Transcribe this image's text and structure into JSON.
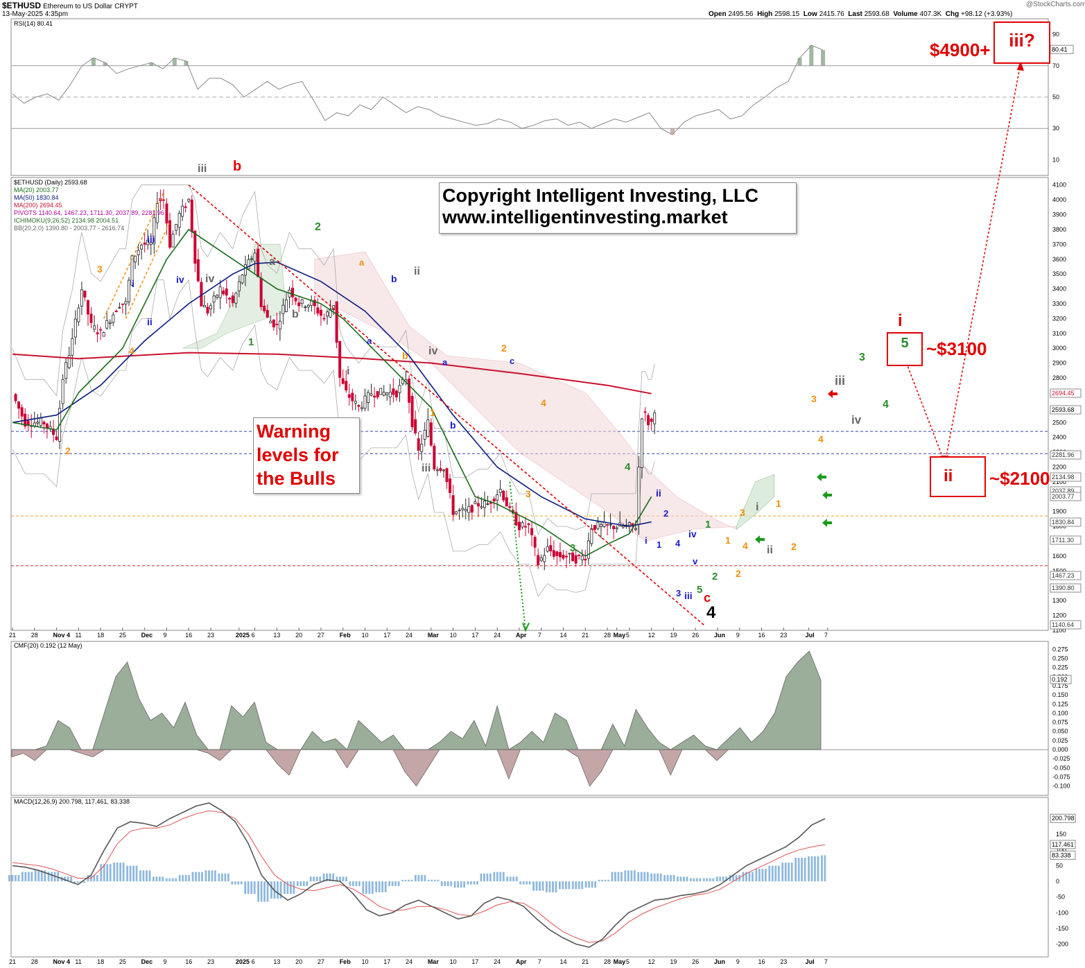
{
  "header": {
    "symbol": "$ETHUSD",
    "name": "Ethereum to US Dollar",
    "exchange": "CRYPT",
    "date": "13-May-2025 4:35pm",
    "watermark": "@StockCharts.com",
    "ohlc": {
      "open_label": "Open",
      "open": "2495.56",
      "high_label": "High",
      "high": "2598.15",
      "low_label": "Low",
      "low": "2415.76",
      "last_label": "Last",
      "last": "2593.68",
      "volume_label": "Volume",
      "volume": "407.3K",
      "chg_label": "Chg",
      "chg": "+98.12 (+3.93%)"
    }
  },
  "legend": {
    "price": "$ETHUSD (Daily) 2593.68",
    "ma20": "MA(20) 2003.77",
    "ma50": "MA(50) 1830.84",
    "ma200": "MA(200) 2694.45",
    "pivots": "PIVOTS 1140.64, 1467.23, 1711.30, 2037.89, 2281.96",
    "ichimoku": "ICHIMOKU(9,26,52) 2134.98 2004.51",
    "bb": "BB(20,2.0) 1390.80 - 2003.77 - 2616.74",
    "rsi": "RSI(14) 80.41",
    "cmf": "CMF(20) 0.192 (12 May)",
    "macd": "MACD(12,26,9) 200.798, 117.461, 83.338"
  },
  "annotations": {
    "copyright_line1": "Copyright Intelligent Investing, LLC",
    "copyright_line2": "www.intelligentinvesting.market",
    "warning_line1": "Warning",
    "warning_line2": "levels for",
    "warning_line3": "the Bulls",
    "target_4900": "$4900+",
    "box_iii": "iii?",
    "target_3100": "~$3100",
    "box_i_top": "i",
    "box_5": "5",
    "target_2100": "~$2100",
    "box_ii": "ii"
  },
  "colors": {
    "up": "#222222",
    "down": "#cc0033",
    "ma20": "#1a6b1a",
    "ma50": "#0a1a80",
    "ma200": "#c8102e",
    "red": "#e00000",
    "orange": "#f0900a",
    "green": "#2a8a2a",
    "blue": "#1a1acc",
    "gray": "#555555",
    "cmf_pos": "#9aae9a",
    "cmf_neg": "#c4a6a6",
    "macd_hist": "#8fb8dc"
  },
  "chart_data": [
    {
      "type": "candlestick",
      "title": "$ETHUSD (Daily) 2593.68",
      "y_ticks": [
        1100,
        1200,
        1300,
        1400,
        1500,
        1600,
        1700,
        1800,
        1900,
        2000,
        2100,
        2200,
        2300,
        2400,
        2500,
        2600,
        2700,
        2800,
        2900,
        3000,
        3100,
        3200,
        3300,
        3400,
        3500,
        3600,
        3700,
        3800,
        3900,
        4000,
        4100
      ],
      "ylim": [
        1100,
        4150
      ],
      "x_ticks": [
        "21",
        "28",
        "Nov 4",
        "11",
        "18",
        "25",
        "Dec",
        "9",
        "16",
        "23",
        "2025",
        "6",
        "13",
        "20",
        "27",
        "Feb",
        "10",
        "17",
        "24",
        "Mar",
        "10",
        "17",
        "24",
        "Apr",
        "7",
        "14",
        "21",
        "28",
        "May",
        "5",
        "12",
        "19",
        "26",
        "Jun",
        "9",
        "16",
        "23",
        "Jul",
        "7"
      ],
      "close_path": [
        [
          "2024-10-21",
          2690
        ],
        [
          "2024-10-25",
          2500
        ],
        [
          "2024-10-31",
          2500
        ],
        [
          "2024-11-04",
          2400
        ],
        [
          "2024-11-06",
          2800
        ],
        [
          "2024-11-09",
          3050
        ],
        [
          "2024-11-11",
          3300
        ],
        [
          "2024-11-12",
          3400
        ],
        [
          "2024-11-15",
          3150
        ],
        [
          "2024-11-18",
          3100
        ],
        [
          "2024-11-21",
          3200
        ],
        [
          "2024-11-24",
          3300
        ],
        [
          "2024-11-26",
          3300
        ],
        [
          "2024-11-28",
          3600
        ],
        [
          "2024-12-01",
          3700
        ],
        [
          "2024-12-04",
          3700
        ],
        [
          "2024-12-06",
          4000
        ],
        [
          "2024-12-08",
          4000
        ],
        [
          "2024-12-10",
          3700
        ],
        [
          "2024-12-13",
          3900
        ],
        [
          "2024-12-16",
          4000
        ],
        [
          "2024-12-18",
          3600
        ],
        [
          "2024-12-20",
          3300
        ],
        [
          "2024-12-22",
          3250
        ],
        [
          "2024-12-26",
          3400
        ],
        [
          "2024-12-30",
          3300
        ],
        [
          "2025-01-02",
          3500
        ],
        [
          "2025-01-06",
          3650
        ],
        [
          "2025-01-08",
          3300
        ],
        [
          "2025-01-10",
          3200
        ],
        [
          "2025-01-13",
          3150
        ],
        [
          "2025-01-17",
          3400
        ],
        [
          "2025-01-20",
          3300
        ],
        [
          "2025-01-24",
          3300
        ],
        [
          "2025-01-28",
          3200
        ],
        [
          "2025-01-31",
          3300
        ],
        [
          "2025-02-02",
          2800
        ],
        [
          "2025-02-04",
          2700
        ],
        [
          "2025-02-08",
          2600
        ],
        [
          "2025-02-12",
          2700
        ],
        [
          "2025-02-16",
          2700
        ],
        [
          "2025-02-20",
          2700
        ],
        [
          "2025-02-23",
          2800
        ],
        [
          "2025-02-25",
          2500
        ],
        [
          "2025-02-27",
          2300
        ],
        [
          "2025-03-02",
          2500
        ],
        [
          "2025-03-04",
          2200
        ],
        [
          "2025-03-07",
          2200
        ],
        [
          "2025-03-10",
          1900
        ],
        [
          "2025-03-14",
          1900
        ],
        [
          "2025-03-18",
          1950
        ],
        [
          "2025-03-21",
          1950
        ],
        [
          "2025-03-25",
          2050
        ],
        [
          "2025-03-28",
          1900
        ],
        [
          "2025-03-31",
          1800
        ],
        [
          "2025-04-03",
          1800
        ],
        [
          "2025-04-06",
          1550
        ],
        [
          "2025-04-09",
          1650
        ],
        [
          "2025-04-12",
          1600
        ],
        [
          "2025-04-15",
          1600
        ],
        [
          "2025-04-18",
          1580
        ],
        [
          "2025-04-21",
          1600
        ],
        [
          "2025-04-23",
          1800
        ],
        [
          "2025-04-26",
          1800
        ],
        [
          "2025-04-30",
          1800
        ],
        [
          "2025-05-03",
          1800
        ],
        [
          "2025-05-07",
          1800
        ],
        [
          "2025-05-08",
          2200
        ],
        [
          "2025-05-09",
          2550
        ],
        [
          "2025-05-10",
          2550
        ],
        [
          "2025-05-11",
          2500
        ],
        [
          "2025-05-12",
          2500
        ],
        [
          "2025-05-13",
          2594
        ]
      ],
      "ma20": [
        [
          "2024-10-21",
          2500
        ],
        [
          "2024-11-04",
          2450
        ],
        [
          "2024-11-11",
          2700
        ],
        [
          "2024-11-25",
          3000
        ],
        [
          "2024-12-09",
          3600
        ],
        [
          "2024-12-16",
          3800
        ],
        [
          "2024-12-30",
          3600
        ],
        [
          "2025-01-06",
          3500
        ],
        [
          "2025-01-13",
          3400
        ],
        [
          "2025-01-27",
          3300
        ],
        [
          "2025-02-03",
          3200
        ],
        [
          "2025-02-17",
          2900
        ],
        [
          "2025-02-24",
          2750
        ],
        [
          "2025-03-03",
          2600
        ],
        [
          "2025-03-10",
          2300
        ],
        [
          "2025-03-17",
          2000
        ],
        [
          "2025-03-24",
          1950
        ],
        [
          "2025-04-07",
          1800
        ],
        [
          "2025-04-21",
          1600
        ],
        [
          "2025-04-28",
          1680
        ],
        [
          "2025-05-05",
          1750
        ],
        [
          "2025-05-12",
          2000
        ]
      ],
      "ma50": [
        [
          "2024-10-21",
          2500
        ],
        [
          "2024-11-04",
          2550
        ],
        [
          "2024-11-18",
          2750
        ],
        [
          "2024-12-02",
          3050
        ],
        [
          "2024-12-16",
          3300
        ],
        [
          "2024-12-30",
          3500
        ],
        [
          "2025-01-06",
          3570
        ],
        [
          "2025-01-13",
          3580
        ],
        [
          "2025-01-27",
          3450
        ],
        [
          "2025-02-10",
          3250
        ],
        [
          "2025-02-24",
          2950
        ],
        [
          "2025-03-10",
          2550
        ],
        [
          "2025-03-24",
          2200
        ],
        [
          "2025-04-07",
          2000
        ],
        [
          "2025-04-21",
          1850
        ],
        [
          "2025-05-05",
          1800
        ],
        [
          "2025-05-12",
          1830
        ]
      ],
      "ma200": [
        [
          "2024-10-21",
          2960
        ],
        [
          "2024-11-11",
          2930
        ],
        [
          "2024-12-16",
          2970
        ],
        [
          "2025-01-13",
          2960
        ],
        [
          "2025-02-10",
          2930
        ],
        [
          "2025-03-03",
          2900
        ],
        [
          "2025-03-31",
          2830
        ],
        [
          "2025-04-28",
          2750
        ],
        [
          "2025-05-12",
          2694
        ]
      ],
      "pivots": [
        2281.96,
        2037.89,
        1711.3,
        1467.23,
        1140.64
      ],
      "ma_200_label": 2694.45,
      "last_label": 2593.68
    },
    {
      "type": "line",
      "title": "RSI(14) 80.41",
      "y_ticks": [
        10,
        30,
        50,
        70,
        90
      ],
      "ylim": [
        0,
        100
      ],
      "values": [
        52,
        46,
        50,
        52,
        48,
        58,
        70,
        75,
        72,
        65,
        68,
        70,
        72,
        68,
        75,
        73,
        55,
        62,
        62,
        58,
        50,
        55,
        60,
        55,
        58,
        60,
        48,
        35,
        40,
        38,
        45,
        42,
        50,
        45,
        40,
        44,
        42,
        38,
        36,
        34,
        32,
        33,
        36,
        34,
        30,
        32,
        35,
        36,
        32,
        34,
        30,
        33,
        36,
        34,
        37,
        40,
        30,
        26,
        34,
        38,
        40,
        42,
        36,
        38,
        45,
        50,
        56,
        60,
        75,
        83,
        80
      ]
    },
    {
      "type": "area",
      "title": "CMF(20) 0.192 (12 May)",
      "y_ticks": [
        -0.1,
        -0.075,
        -0.05,
        -0.025,
        0.0,
        0.025,
        0.05,
        0.075,
        0.1,
        0.125,
        0.15,
        0.175,
        0.2,
        0.225,
        0.25,
        0.275
      ],
      "ylim": [
        -0.11,
        0.285
      ],
      "values": [
        -0.02,
        -0.01,
        -0.03,
        0.01,
        0.08,
        0.06,
        -0.01,
        -0.02,
        0.1,
        0.2,
        0.24,
        0.14,
        0.08,
        0.1,
        0.06,
        0.13,
        0.04,
        -0.01,
        -0.03,
        0.12,
        0.09,
        0.13,
        0.02,
        -0.04,
        -0.07,
        0.0,
        0.05,
        0.02,
        0.03,
        -0.05,
        0.08,
        0.05,
        0.02,
        0.04,
        -0.06,
        -0.1,
        -0.05,
        0.02,
        0.05,
        0.03,
        0.08,
        0.01,
        0.12,
        -0.08,
        0.02,
        0.05,
        0.02,
        0.1,
        0.08,
        -0.02,
        -0.1,
        -0.06,
        0.07,
        0.01,
        0.11,
        0.06,
        0.02,
        -0.07,
        0.02,
        0.04,
        0.01,
        -0.03,
        0.03,
        0.06,
        0.02,
        0.05,
        0.1,
        0.2,
        0.24,
        0.27,
        0.19
      ]
    },
    {
      "type": "line",
      "title": "MACD(12,26,9) 200.798, 117.461, 83.338",
      "y_ticks": [
        -200,
        -150,
        -100,
        -50,
        0,
        50,
        100,
        150,
        200
      ],
      "ylim": [
        -210,
        250
      ],
      "macd": [
        50,
        45,
        35,
        20,
        5,
        -10,
        20,
        100,
        170,
        190,
        185,
        175,
        200,
        220,
        240,
        250,
        225,
        190,
        120,
        20,
        -30,
        -60,
        -40,
        -10,
        5,
        0,
        -40,
        -90,
        -110,
        -100,
        -75,
        -60,
        -80,
        -100,
        -120,
        -110,
        -70,
        -50,
        -60,
        -80,
        -120,
        -155,
        -180,
        -200,
        -210,
        -185,
        -140,
        -100,
        -80,
        -60,
        -55,
        -45,
        -40,
        -30,
        -10,
        20,
        50,
        70,
        90,
        110,
        140,
        180,
        200
      ],
      "signal": [
        60,
        55,
        50,
        40,
        25,
        10,
        10,
        50,
        120,
        160,
        170,
        170,
        180,
        200,
        215,
        225,
        220,
        200,
        150,
        80,
        20,
        -10,
        -25,
        -30,
        -20,
        -10,
        -25,
        -50,
        -80,
        -95,
        -90,
        -80,
        -80,
        -90,
        -105,
        -110,
        -95,
        -75,
        -65,
        -70,
        -95,
        -130,
        -160,
        -180,
        -195,
        -190,
        -165,
        -130,
        -105,
        -85,
        -70,
        -55,
        -45,
        -38,
        -25,
        0,
        25,
        45,
        65,
        85,
        100,
        110,
        117
      ],
      "histogram": [
        20,
        30,
        35,
        30,
        15,
        -5,
        20,
        55,
        60,
        50,
        35,
        15,
        10,
        20,
        30,
        35,
        25,
        -10,
        -40,
        -65,
        -55,
        -40,
        -15,
        15,
        25,
        15,
        -15,
        -40,
        -35,
        -15,
        5,
        20,
        5,
        -15,
        -20,
        -10,
        25,
        30,
        15,
        -10,
        -30,
        -35,
        -25,
        -25,
        -20,
        5,
        30,
        35,
        30,
        25,
        20,
        15,
        10,
        10,
        15,
        20,
        30,
        40,
        50,
        60,
        75,
        80,
        83
      ]
    }
  ]
}
